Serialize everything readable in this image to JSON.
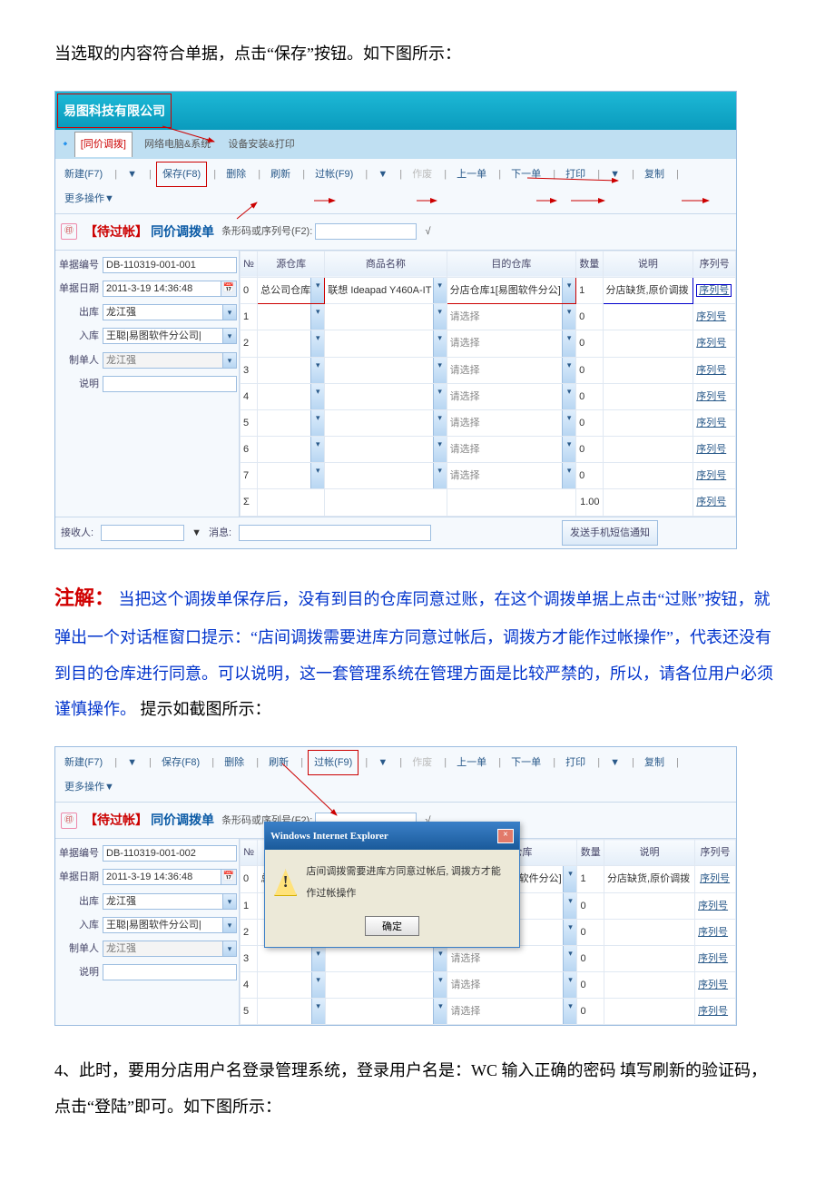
{
  "doc": {
    "para1": "当选取的内容符合单据，点击“保存”按钮。如下图所示：",
    "note_label": "注解：",
    "note_body": "当把这个调拨单保存后，没有到目的仓库同意过账，在这个调拨单据上点击“过账”按钮，就弹出一个对话框窗口提示：“店间调拨需要进库方同意过帐后，调拨方才能作过帐操作”，代表还没有到目的仓库进行同意。可以说明，这一套管理系统在管理方面是比较严禁的，所以，请各位用户必须谨慎操作。",
    "note_tail": "提示如截图所示：",
    "para4": "4、此时，要用分店用户名登录管理系统，登录用户名是：WC  输入正确的密码  填写刷新的验证码，点击“登陆”即可。如下图所示："
  },
  "toolbar": {
    "new": "新建(F7)",
    "save": "保存(F8)",
    "delete": "删除",
    "refresh": "刷新",
    "post": "过帐(F9)",
    "discard": "作废",
    "prev": "上一单",
    "next": "下一单",
    "print": "打印",
    "copy": "复制",
    "more": "更多操作▼",
    "caret": "▼"
  },
  "company": "易图科技有限公司",
  "tabs": {
    "t1": "[同价调拨]",
    "t2": "网络电脑&系统",
    "t3": "设备安装&打印"
  },
  "form": {
    "pending": "【待过帐】",
    "title": "同价调拨单",
    "barcode_label": "条形码或序列号(F2):",
    "checkmark": "√",
    "left": {
      "doc_no_label": "单据编号",
      "doc_date_label": "单据日期",
      "out_wh_label": "出库",
      "in_wh_label": "入库",
      "maker_label": "制单人",
      "remark_label": "说明",
      "doc_no_1": "DB-110319-001-001",
      "doc_no_2": "DB-110319-001-002",
      "doc_date": "2011-3-19 14:36:48",
      "out_wh": "龙江强",
      "in_wh": "王聪|易图软件分公司|",
      "maker": "龙江强"
    }
  },
  "grid": {
    "cols": {
      "no": "№",
      "src_wh": "源仓库",
      "product": "商品名称",
      "dst_wh": "目的仓库",
      "qty": "数量",
      "remark": "说明",
      "serial": "序列号"
    },
    "row0": {
      "src_wh": "总公司仓库",
      "product": "联想 Ideapad Y460A-IT",
      "dst_wh": "分店仓库1[易图软件分公]",
      "qty": "1",
      "remark": "分店缺货,原价调拨"
    },
    "empty_dst": "请选择",
    "empty_qty": "0",
    "sum_qty": "1.00",
    "sigma": "Σ",
    "serial_btn": "序列号"
  },
  "footer": {
    "recipient_label": "接收人:",
    "msg_label": "消息:",
    "sms_btn": "发送手机短信通知",
    "caret": "▼"
  },
  "dialog": {
    "title": "Windows Internet Explorer",
    "msg": "店间调拨需要进库方同意过帐后, 调拨方才能作过帐操作",
    "ok": "确定",
    "close": "×"
  }
}
